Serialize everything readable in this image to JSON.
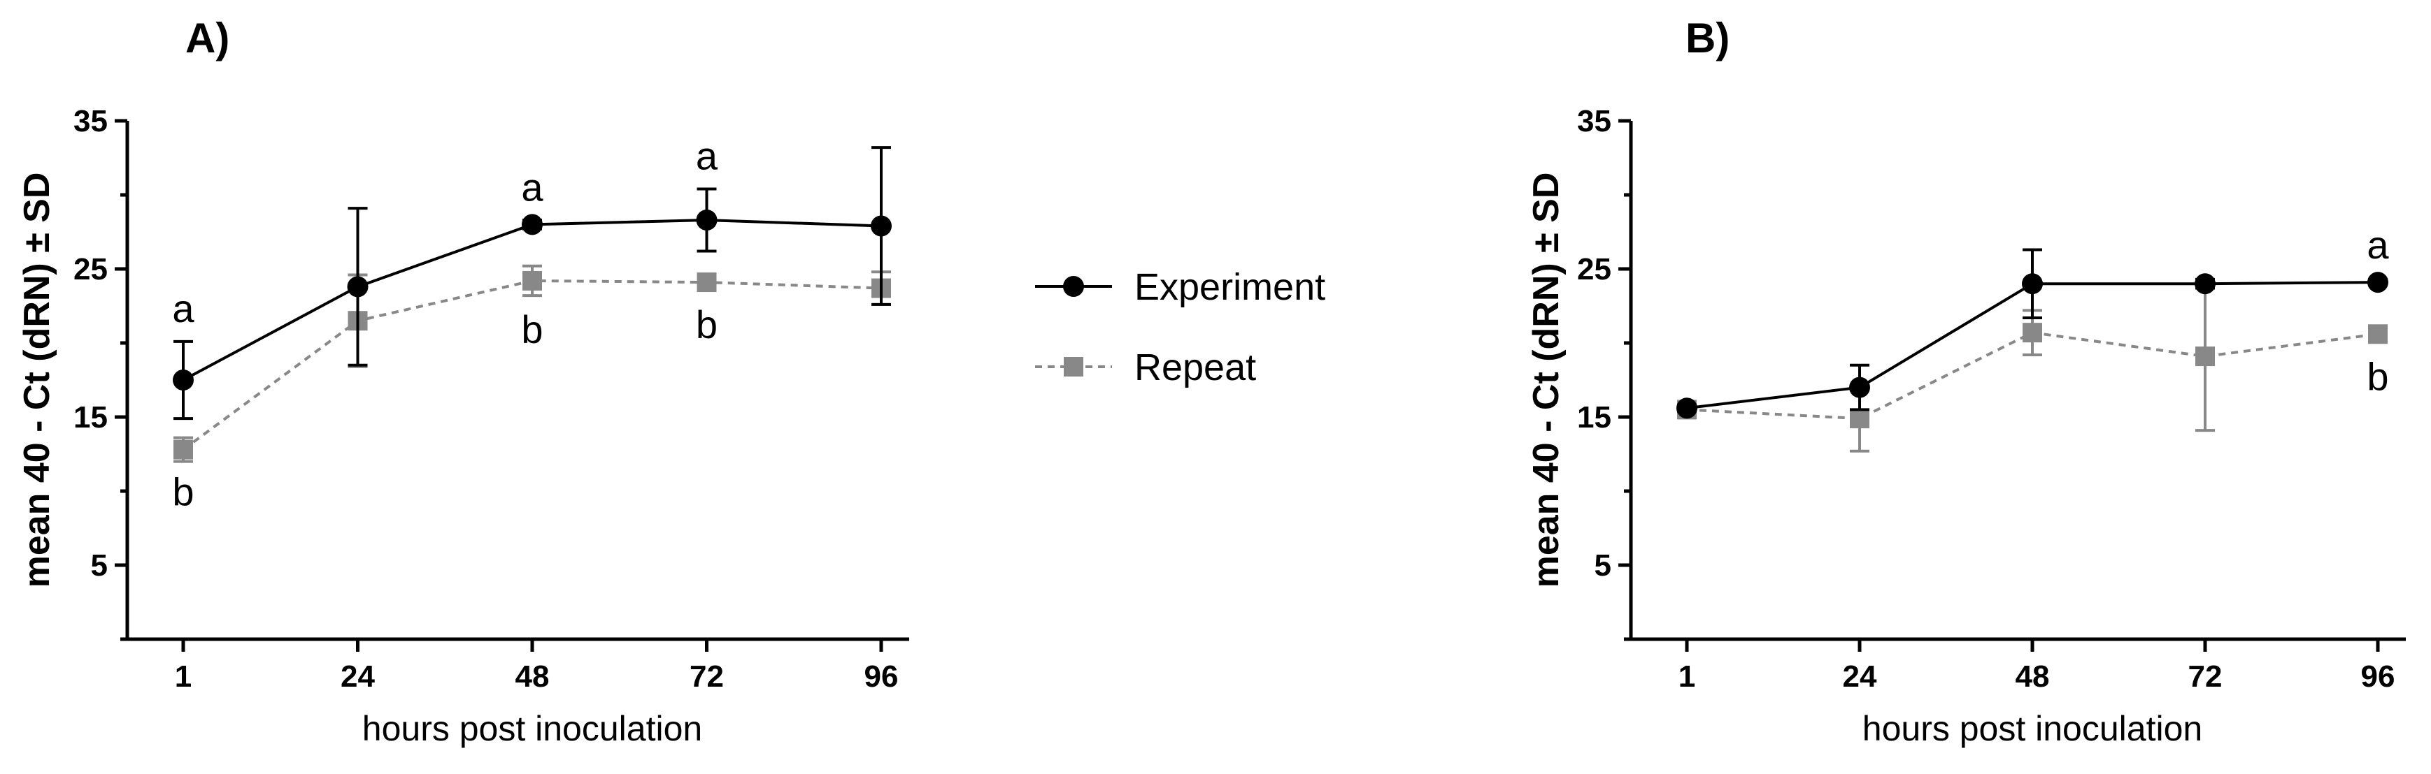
{
  "legend": {
    "placement": "between panels",
    "items": [
      {
        "name": "Experiment",
        "color": "#000000",
        "marker": "circle",
        "line": "solid"
      },
      {
        "name": "Repeat",
        "color": "#888888",
        "marker": "square",
        "line": "dashed"
      }
    ]
  },
  "chart_data": [
    {
      "type": "line",
      "panel_label": "A)",
      "xlabel": "hours post inoculation",
      "ylabel": "mean 40 - Ct (dRN) ± SD",
      "x": [
        1,
        24,
        48,
        72,
        96
      ],
      "x_tick_labels": [
        "1",
        "24",
        "48",
        "72",
        "96"
      ],
      "ylim": [
        0,
        35
      ],
      "y_ticks": [
        5,
        15,
        25,
        35
      ],
      "series": [
        {
          "name": "Experiment",
          "values": [
            17.5,
            23.8,
            28.0,
            28.3,
            27.9
          ],
          "error": [
            2.6,
            5.3,
            0.3,
            2.1,
            5.3
          ]
        },
        {
          "name": "Repeat",
          "values": [
            12.8,
            21.5,
            24.2,
            24.1,
            23.7
          ],
          "error": [
            0.8,
            3.1,
            1.0,
            0.4,
            1.1
          ]
        }
      ],
      "annotations": [
        {
          "x": 1,
          "text": "a",
          "pos": "above"
        },
        {
          "x": 1,
          "text": "b",
          "pos": "below"
        },
        {
          "x": 48,
          "text": "a",
          "pos": "above"
        },
        {
          "x": 48,
          "text": "b",
          "pos": "below"
        },
        {
          "x": 72,
          "text": "a",
          "pos": "above"
        },
        {
          "x": 72,
          "text": "b",
          "pos": "below"
        }
      ],
      "grid": false
    },
    {
      "type": "line",
      "panel_label": "B)",
      "xlabel": "hours post inoculation",
      "ylabel": "mean 40 - Ct (dRN) ± SD",
      "x": [
        1,
        24,
        48,
        72,
        96
      ],
      "x_tick_labels": [
        "1",
        "24",
        "48",
        "72",
        "96"
      ],
      "ylim": [
        0,
        35
      ],
      "y_ticks": [
        5,
        15,
        25,
        35
      ],
      "series": [
        {
          "name": "Experiment",
          "values": [
            15.6,
            17.0,
            24.0,
            24.0,
            24.1
          ],
          "error": [
            0.2,
            1.5,
            2.3,
            0.3,
            0.2
          ]
        },
        {
          "name": "Repeat",
          "values": [
            15.5,
            14.9,
            20.7,
            19.1,
            20.6
          ],
          "error": [
            0.3,
            2.2,
            1.5,
            5.0,
            0.3
          ]
        }
      ],
      "annotations": [
        {
          "x": 96,
          "text": "a",
          "pos": "above"
        },
        {
          "x": 96,
          "text": "b",
          "pos": "below"
        }
      ],
      "grid": false
    }
  ]
}
